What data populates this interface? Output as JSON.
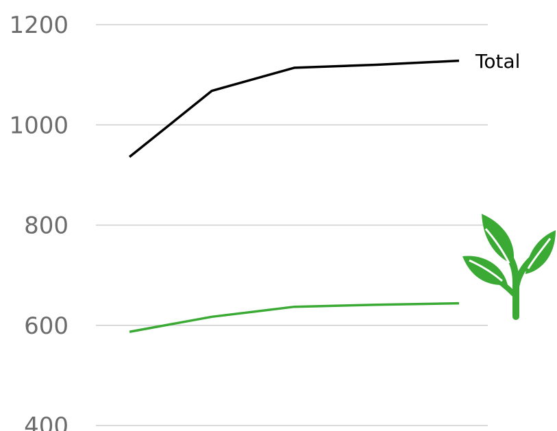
{
  "chart_data": {
    "type": "line",
    "title": "",
    "xlabel": "",
    "ylabel": "",
    "ylim": [
      400,
      1200
    ],
    "yticks": [
      {
        "value": 400,
        "label": "400"
      },
      {
        "value": 600,
        "label": "600"
      },
      {
        "value": 800,
        "label": "800"
      },
      {
        "value": 1000,
        "label": "1000"
      },
      {
        "value": 1200,
        "label": "1200"
      }
    ],
    "grid": true,
    "x": [
      1,
      2,
      3,
      4,
      5
    ],
    "series": [
      {
        "name": "Total",
        "color": "#000000",
        "label": "Total",
        "values": [
          936,
          1068,
          1114,
          1120,
          1128
        ]
      },
      {
        "name": "",
        "color": "#3aaa35",
        "icon": "plant-icon",
        "values": [
          587,
          617,
          637,
          641,
          644
        ]
      }
    ]
  }
}
